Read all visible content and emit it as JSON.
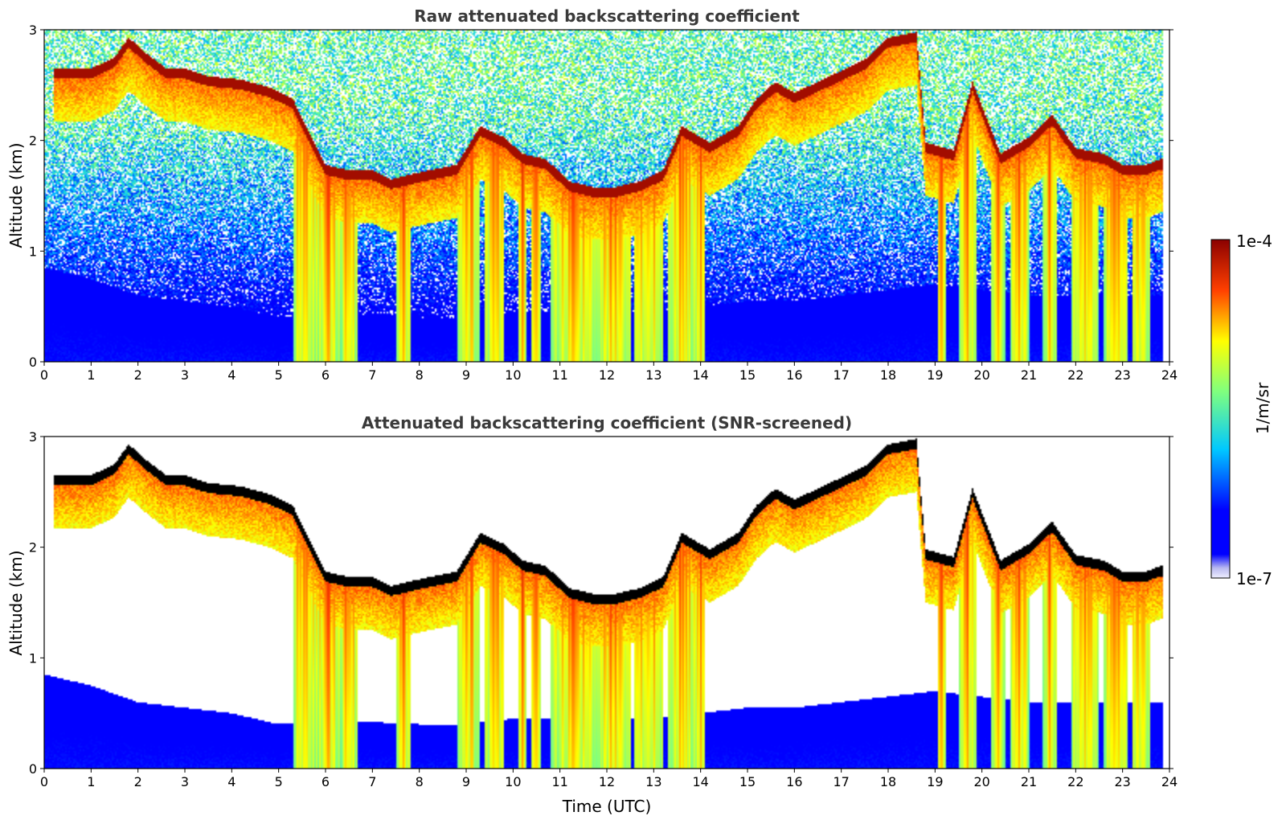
{
  "chart_data": [
    {
      "type": "heatmap",
      "title": "Raw attenuated backscattering coefficient",
      "xlabel": "",
      "ylabel": "Altitude (km)",
      "xlim": [
        0,
        24
      ],
      "ylim": [
        0,
        3
      ],
      "xticks": [
        "0",
        "1",
        "2",
        "3",
        "4",
        "5",
        "6",
        "7",
        "8",
        "9",
        "10",
        "11",
        "12",
        "13",
        "14",
        "15",
        "16",
        "17",
        "18",
        "19",
        "20",
        "21",
        "22",
        "23",
        "24"
      ],
      "yticks": [
        "0",
        "1",
        "2",
        "3"
      ],
      "screened": false
    },
    {
      "type": "heatmap",
      "title": "Attenuated backscattering coefficient (SNR-screened)",
      "xlabel": "Time (UTC)",
      "ylabel": "Altitude (km)",
      "xlim": [
        0,
        24
      ],
      "ylim": [
        0,
        3
      ],
      "xticks": [
        "0",
        "1",
        "2",
        "3",
        "4",
        "5",
        "6",
        "7",
        "8",
        "9",
        "10",
        "11",
        "12",
        "13",
        "14",
        "15",
        "16",
        "17",
        "18",
        "19",
        "20",
        "21",
        "22",
        "23",
        "24"
      ],
      "yticks": [
        "0",
        "1",
        "2",
        "3"
      ],
      "screened": true
    }
  ],
  "colorbar": {
    "label": "1/m/sr",
    "max_label": "1e-4",
    "min_label": "1e-7",
    "scale": "log",
    "range": [
      1e-07,
      0.0001
    ],
    "colormap": "jet"
  },
  "cloud_features": {
    "cloud_top_km": [
      [
        0.25,
        2.62
      ],
      [
        1.0,
        2.62
      ],
      [
        1.5,
        2.72
      ],
      [
        1.8,
        2.9
      ],
      [
        2.2,
        2.75
      ],
      [
        2.6,
        2.62
      ],
      [
        3.0,
        2.62
      ],
      [
        3.5,
        2.55
      ],
      [
        4.2,
        2.52
      ],
      [
        4.8,
        2.45
      ],
      [
        5.3,
        2.35
      ],
      [
        5.7,
        2.0
      ],
      [
        6.0,
        1.75
      ],
      [
        6.5,
        1.7
      ],
      [
        7.0,
        1.7
      ],
      [
        7.4,
        1.62
      ],
      [
        8.2,
        1.7
      ],
      [
        8.8,
        1.75
      ],
      [
        9.3,
        2.1
      ],
      [
        9.8,
        2.0
      ],
      [
        10.2,
        1.85
      ],
      [
        10.7,
        1.8
      ],
      [
        11.2,
        1.6
      ],
      [
        11.7,
        1.55
      ],
      [
        12.2,
        1.55
      ],
      [
        12.7,
        1.6
      ],
      [
        13.2,
        1.7
      ],
      [
        13.6,
        2.1
      ],
      [
        14.2,
        1.95
      ],
      [
        14.8,
        2.1
      ],
      [
        15.2,
        2.35
      ],
      [
        15.6,
        2.5
      ],
      [
        16.0,
        2.4
      ],
      [
        17.0,
        2.6
      ],
      [
        17.5,
        2.7
      ],
      [
        18.0,
        2.9
      ],
      [
        18.6,
        2.95
      ],
      [
        18.8,
        1.95
      ],
      [
        19.4,
        1.88
      ],
      [
        19.8,
        2.5
      ],
      [
        20.4,
        1.85
      ],
      [
        21.0,
        2.0
      ],
      [
        21.5,
        2.2
      ],
      [
        22.0,
        1.9
      ],
      [
        22.6,
        1.85
      ],
      [
        23.0,
        1.75
      ],
      [
        23.5,
        1.75
      ],
      [
        23.8,
        1.8
      ]
    ],
    "precip_columns_utc": [
      [
        5.3,
        5.8
      ],
      [
        5.8,
        6.3
      ],
      [
        6.3,
        6.7
      ],
      [
        7.5,
        7.8
      ],
      [
        8.8,
        9.3
      ],
      [
        9.4,
        9.8
      ],
      [
        10.1,
        10.3
      ],
      [
        10.4,
        10.6
      ],
      [
        10.8,
        11.8
      ],
      [
        11.8,
        12.5
      ],
      [
        12.6,
        13.2
      ],
      [
        13.3,
        13.9
      ],
      [
        13.9,
        14.1
      ],
      [
        19.05,
        19.25
      ],
      [
        19.5,
        19.9
      ],
      [
        20.2,
        20.5
      ],
      [
        20.6,
        21.0
      ],
      [
        21.3,
        21.6
      ],
      [
        21.9,
        22.5
      ],
      [
        22.6,
        23.1
      ],
      [
        23.2,
        23.6
      ]
    ],
    "boundary_layer_top_km": [
      [
        0,
        0.85
      ],
      [
        1,
        0.75
      ],
      [
        2,
        0.6
      ],
      [
        3,
        0.55
      ],
      [
        4,
        0.5
      ],
      [
        5,
        0.4
      ],
      [
        6,
        0.45
      ],
      [
        7,
        0.42
      ],
      [
        8,
        0.4
      ],
      [
        9,
        0.4
      ],
      [
        10,
        0.45
      ],
      [
        11,
        0.45
      ],
      [
        12,
        0.45
      ],
      [
        13,
        0.45
      ],
      [
        14,
        0.5
      ],
      [
        15,
        0.55
      ],
      [
        16,
        0.55
      ],
      [
        17,
        0.6
      ],
      [
        18,
        0.65
      ],
      [
        19,
        0.7
      ],
      [
        20,
        0.65
      ],
      [
        21,
        0.6
      ],
      [
        22,
        0.6
      ],
      [
        23,
        0.6
      ],
      [
        24,
        0.6
      ]
    ]
  }
}
